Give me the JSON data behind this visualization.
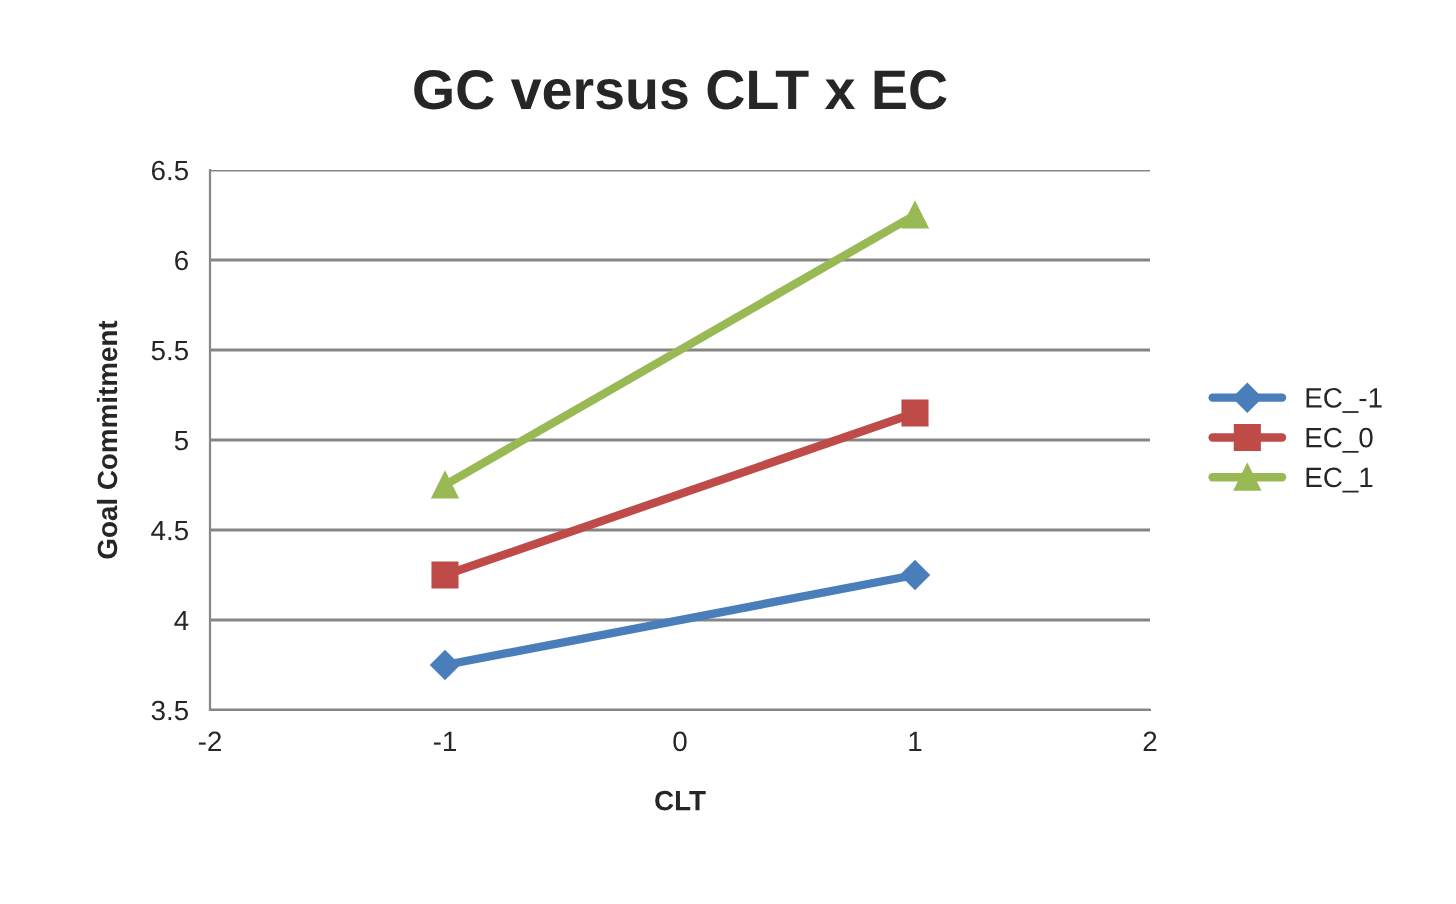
{
  "chart_data": {
    "type": "line",
    "title": "GC versus CLT x EC",
    "xlabel": "CLT",
    "ylabel": "Goal Commitment",
    "x": [
      -1,
      1
    ],
    "series": [
      {
        "name": "EC_-1",
        "color": "#4a7ebb",
        "marker": "diamond",
        "values": [
          3.75,
          4.25
        ]
      },
      {
        "name": "EC_0",
        "color": "#be4b48",
        "marker": "square",
        "values": [
          4.25,
          5.15
        ]
      },
      {
        "name": "EC_1",
        "color": "#98b954",
        "marker": "triangle",
        "values": [
          4.75,
          6.25
        ]
      }
    ],
    "xlim": [
      -2,
      2
    ],
    "xticks": [
      -2,
      -1,
      0,
      1,
      2
    ],
    "ylim": [
      3.5,
      6.5
    ],
    "yticks": [
      3.5,
      4,
      4.5,
      5,
      5.5,
      6,
      6.5
    ],
    "grid": "y",
    "legend": "right",
    "line_style": "solid"
  }
}
